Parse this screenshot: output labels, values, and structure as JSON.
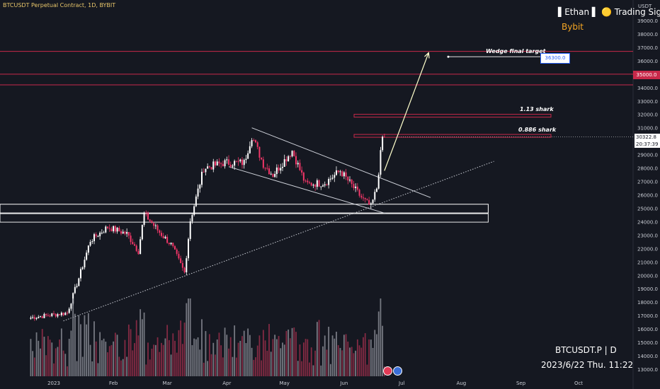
{
  "header": {
    "symbol_info": "BTCUSDT Perpetual Contract, 1D, BYBIT",
    "brand": "▌Ethan ▌ 🟡 Trading Signals",
    "exchange": "Bybit"
  },
  "footer": {
    "ticker": "BTCUSDT.P | D",
    "datetime": "2023/6/22 Thu. 11:22"
  },
  "axis": {
    "currency": "USDT",
    "price_ticks": [
      "39000.0",
      "38000.0",
      "37000.0",
      "36000.0",
      "35000.0",
      "34000.0",
      "33000.0",
      "32000.0",
      "31000.0",
      "30000.0",
      "29000.0",
      "28000.0",
      "27000.0",
      "26000.0",
      "25000.0",
      "24000.0",
      "23000.0",
      "22000.0",
      "21000.0",
      "20000.0",
      "19000.0",
      "18000.0",
      "17000.0",
      "16000.0",
      "15000.0",
      "14000.0",
      "13000.0"
    ],
    "time_ticks": [
      "2023",
      "Feb",
      "Mar",
      "Apr",
      "May",
      "Jun",
      "Jul",
      "Aug",
      "Sep",
      "Oct"
    ]
  },
  "badges": {
    "target_price": "36300.0",
    "level_35000": "35000.0",
    "last_price": "30322.8",
    "countdown": "20:37:39"
  },
  "annotations": {
    "wedge_target": "Wedge final target",
    "shark_113": "1.13 shark",
    "shark_0886": "0.886 shark"
  },
  "colors": {
    "background": "#151821",
    "bull": "#ffffff",
    "bear": "#f23668",
    "level_line": "#c8294a",
    "target_arrow": "#ffffcc"
  },
  "chart_data": {
    "type": "candlestick",
    "interval": "1D",
    "ylim": [
      12700,
      39600
    ],
    "x_range": [
      "2022-12-20",
      "2023-10-13"
    ],
    "series": [
      {
        "name": "BTCUSDT.P",
        "ohlc_waypoints": [
          {
            "date": "2022-12-20",
            "close": 16850
          },
          {
            "date": "2023-01-08",
            "close": 17200
          },
          {
            "date": "2023-01-14",
            "close": 19800
          },
          {
            "date": "2023-01-20",
            "close": 22600
          },
          {
            "date": "2023-01-29",
            "close": 23600
          },
          {
            "date": "2023-02-08",
            "close": 23100
          },
          {
            "date": "2023-02-14",
            "close": 21800
          },
          {
            "date": "2023-02-17",
            "close": 24600
          },
          {
            "date": "2023-02-25",
            "close": 23200
          },
          {
            "date": "2023-03-03",
            "close": 22300
          },
          {
            "date": "2023-03-10",
            "close": 20200
          },
          {
            "date": "2023-03-13",
            "close": 24100
          },
          {
            "date": "2023-03-20",
            "close": 28000
          },
          {
            "date": "2023-03-31",
            "close": 28400
          },
          {
            "date": "2023-04-10",
            "close": 28400
          },
          {
            "date": "2023-04-14",
            "close": 30400
          },
          {
            "date": "2023-04-20",
            "close": 28300
          },
          {
            "date": "2023-04-25",
            "close": 27500
          },
          {
            "date": "2023-05-05",
            "close": 29300
          },
          {
            "date": "2023-05-12",
            "close": 26800
          },
          {
            "date": "2023-05-22",
            "close": 26900
          },
          {
            "date": "2023-05-30",
            "close": 27800
          },
          {
            "date": "2023-06-10",
            "close": 25800
          },
          {
            "date": "2023-06-15",
            "close": 25100
          },
          {
            "date": "2023-06-18",
            "close": 26500
          },
          {
            "date": "2023-06-21",
            "close": 30300
          },
          {
            "date": "2023-06-22",
            "close": 30322.8
          }
        ]
      }
    ],
    "levels": [
      {
        "price": 36700,
        "label": ""
      },
      {
        "price": 35000,
        "label": "35000.0"
      },
      {
        "price": 34200,
        "label": ""
      },
      {
        "price": 31900,
        "label": "1.13 shark"
      },
      {
        "price": 30400,
        "label": "0.886 shark"
      }
    ],
    "support_zone": {
      "from_date": "2022-12-20",
      "to_date": "2023-08-15",
      "low": 24650,
      "high": 25300
    },
    "wedge": {
      "upper": [
        {
          "date": "2023-04-14",
          "price": 31000
        },
        {
          "date": "2023-07-16",
          "price": 25800
        }
      ],
      "lower": [
        {
          "date": "2023-04-02",
          "price": 28100
        },
        {
          "date": "2023-06-23",
          "price": 24600
        }
      ]
    },
    "trendline": [
      {
        "date": "2023-01-06",
        "price": 16600
      },
      {
        "date": "2023-08-18",
        "price": 28500
      }
    ],
    "target_arrow": {
      "from": {
        "date": "2023-06-22",
        "price": 27800
      },
      "to": {
        "date": "2023-07-15",
        "price": 36600
      },
      "target_price": 36300
    }
  }
}
